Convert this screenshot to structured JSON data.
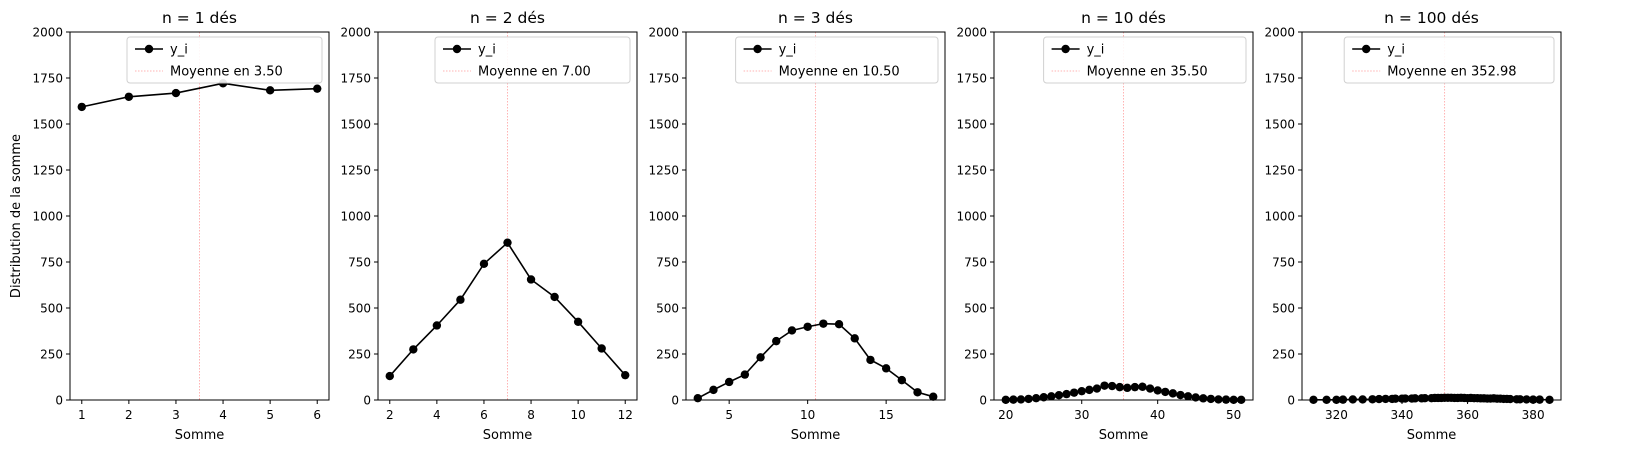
{
  "figure": {
    "shared_ylabel": "Distribution de la somme"
  },
  "chart_data": [
    {
      "type": "line",
      "title": "n = 1 dés",
      "xlabel": "Somme",
      "ylabel": "Distribution de la somme",
      "xlim": [
        0.75,
        6.25
      ],
      "ylim": [
        0,
        2000
      ],
      "xticks": [
        1,
        2,
        3,
        4,
        5,
        6
      ],
      "yticks": [
        0,
        250,
        500,
        750,
        1000,
        1250,
        1500,
        1750,
        2000
      ],
      "legend_position": "top-right",
      "series": [
        {
          "name": "y_i",
          "color": "#000000",
          "marker": "circle",
          "x": [
            1,
            2,
            3,
            4,
            5,
            6
          ],
          "y": [
            1593,
            1648,
            1668,
            1721,
            1683,
            1692
          ]
        }
      ],
      "mean": {
        "value": 3.5,
        "label": "Moyenne en 3.50",
        "color": "#ffb3b3"
      }
    },
    {
      "type": "line",
      "title": "n = 2 dés",
      "xlabel": "Somme",
      "ylabel": "",
      "xlim": [
        1.5,
        12.5
      ],
      "ylim": [
        0,
        2000
      ],
      "xticks": [
        2,
        4,
        6,
        8,
        10,
        12
      ],
      "yticks": [
        0,
        250,
        500,
        750,
        1000,
        1250,
        1500,
        1750,
        2000
      ],
      "legend_position": "top-right",
      "series": [
        {
          "name": "y_i",
          "color": "#000000",
          "marker": "circle",
          "x": [
            2,
            3,
            4,
            5,
            6,
            7,
            8,
            9,
            10,
            11,
            12
          ],
          "y": [
            130,
            275,
            405,
            545,
            740,
            855,
            655,
            560,
            425,
            280,
            135
          ]
        }
      ],
      "mean": {
        "value": 7.0,
        "label": "Moyenne en 7.00",
        "color": "#ffb3b3"
      }
    },
    {
      "type": "line",
      "title": "n = 3 dés",
      "xlabel": "Somme",
      "ylabel": "",
      "xlim": [
        2.25,
        18.75
      ],
      "ylim": [
        0,
        2000
      ],
      "xticks": [
        5,
        10,
        15
      ],
      "yticks": [
        0,
        250,
        500,
        750,
        1000,
        1250,
        1500,
        1750,
        2000
      ],
      "legend_position": "top-right",
      "series": [
        {
          "name": "y_i",
          "color": "#000000",
          "marker": "circle",
          "x": [
            3,
            4,
            5,
            6,
            7,
            8,
            9,
            10,
            11,
            12,
            13,
            14,
            15,
            16,
            17,
            18
          ],
          "y": [
            10,
            55,
            98,
            138,
            232,
            320,
            378,
            398,
            415,
            412,
            335,
            218,
            172,
            108,
            42,
            18
          ]
        }
      ],
      "mean": {
        "value": 10.5,
        "label": "Moyenne en 10.50",
        "color": "#ffb3b3"
      }
    },
    {
      "type": "line",
      "title": "n = 10 dés",
      "xlabel": "Somme",
      "ylabel": "",
      "xlim": [
        18.45,
        52.55
      ],
      "ylim": [
        0,
        2000
      ],
      "xticks": [
        20,
        30,
        40,
        50
      ],
      "yticks": [
        0,
        250,
        500,
        750,
        1000,
        1250,
        1500,
        1750,
        2000
      ],
      "legend_position": "top-right",
      "series": [
        {
          "name": "y_i",
          "color": "#000000",
          "marker": "circle",
          "x": [
            20,
            21,
            22,
            23,
            24,
            25,
            26,
            27,
            28,
            29,
            30,
            31,
            32,
            33,
            34,
            35,
            36,
            37,
            38,
            39,
            40,
            41,
            42,
            43,
            44,
            45,
            46,
            47,
            48,
            49,
            50,
            51
          ],
          "y": [
            1,
            2,
            3,
            6,
            10,
            15,
            20,
            26,
            32,
            40,
            48,
            55,
            62,
            78,
            76,
            70,
            66,
            70,
            72,
            62,
            52,
            44,
            36,
            27,
            20,
            14,
            9,
            6,
            3,
            2,
            1,
            1
          ]
        }
      ],
      "mean": {
        "value": 35.5,
        "label": "Moyenne en 35.50",
        "color": "#ffb3b3"
      }
    },
    {
      "type": "line",
      "title": "n = 100 dés",
      "xlabel": "Somme",
      "ylabel": "",
      "xlim": [
        309.5,
        388.5
      ],
      "ylim": [
        0,
        2000
      ],
      "xticks": [
        320,
        340,
        360,
        380
      ],
      "yticks": [
        0,
        250,
        500,
        750,
        1000,
        1250,
        1500,
        1750,
        2000
      ],
      "legend_position": "top-right",
      "series": [
        {
          "name": "y_i",
          "color": "#000000",
          "marker": "circle",
          "x": [
            313,
            317,
            320,
            322,
            325,
            328,
            331,
            333,
            335,
            337,
            338,
            340,
            341,
            343,
            344,
            346,
            347,
            349,
            350,
            351,
            352,
            353,
            354,
            355,
            356,
            357,
            358,
            359,
            360,
            361,
            362,
            363,
            364,
            365,
            366,
            367,
            368,
            369,
            370,
            371,
            372,
            373,
            375,
            376,
            378,
            380,
            382,
            385
          ],
          "y": [
            1,
            1,
            1,
            2,
            3,
            3,
            4,
            5,
            6,
            6,
            7,
            7,
            8,
            8,
            9,
            9,
            10,
            10,
            11,
            11,
            11,
            12,
            12,
            12,
            11,
            11,
            12,
            11,
            10,
            11,
            10,
            10,
            9,
            9,
            8,
            8,
            9,
            7,
            7,
            6,
            6,
            5,
            4,
            4,
            3,
            2,
            2,
            1
          ]
        }
      ],
      "mean": {
        "value": 352.98,
        "label": "Moyenne en 352.98",
        "color": "#ffb3b3"
      }
    }
  ]
}
